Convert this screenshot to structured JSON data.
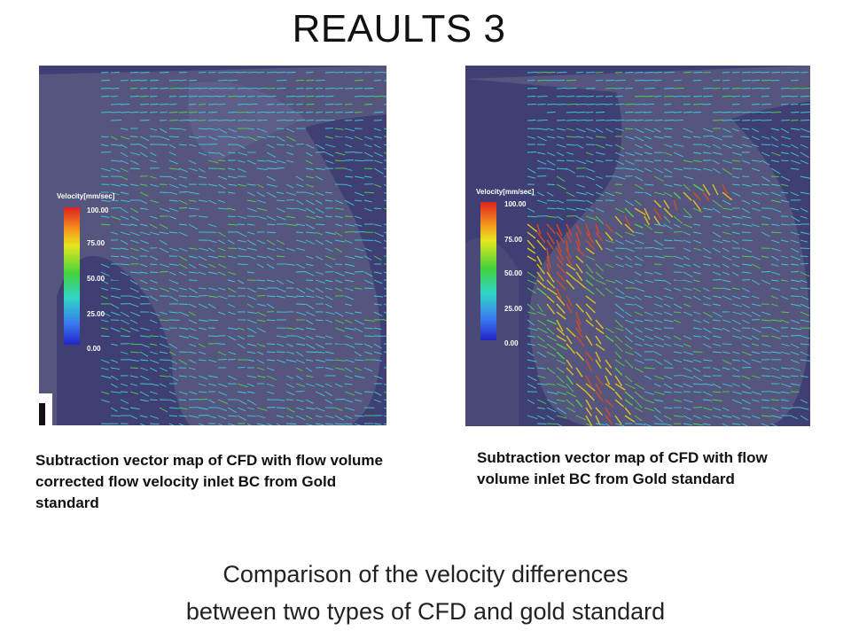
{
  "title": "REAULTS 3",
  "panels": [
    {
      "legend_title": "Velocity[mm/sec]",
      "ticks": [
        "100.00",
        "75.00",
        "50.00",
        "25.00",
        "0.00"
      ],
      "caption": "Subtraction vector map of CFD with flow volume corrected flow velocity inlet BC from Gold standard"
    },
    {
      "legend_title": "Velocity[mm/sec]",
      "ticks": [
        "100.00",
        "75.00",
        "50.00",
        "25.00",
        "0.00"
      ],
      "caption": "Subtraction vector map of CFD with flow volume inlet BC from Gold standard"
    }
  ],
  "summary_lines": [
    "Comparison of the velocity differences",
    "between two types of CFD and gold standard"
  ],
  "colors": {
    "panel_background": "#3f3f74",
    "vessel": "#5a5a82",
    "vector_low": "#3cc8d8",
    "vector_mid": "#4fd04a",
    "vector_high": "#e0c020",
    "vector_peak": "#d84a20"
  }
}
